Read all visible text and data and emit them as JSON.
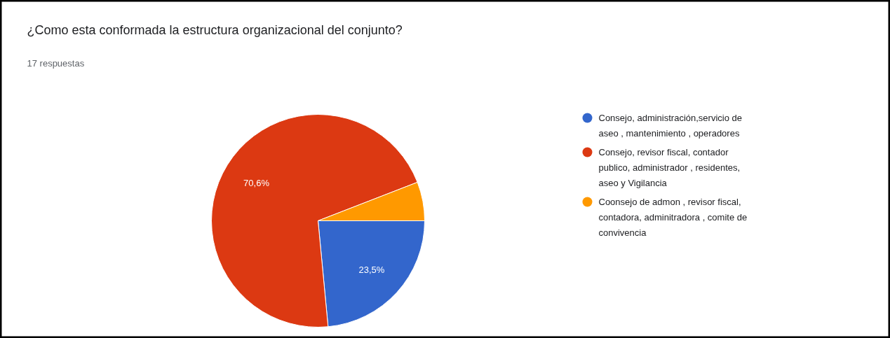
{
  "chart_data": {
    "type": "pie",
    "title": "¿Como esta conformada la estructura organizacional del conjunto?",
    "subtitle": "17 respuestas",
    "categories": [
      "Consejo, administración,servicio de aseo , mantenimiento , operadores",
      "Consejo, revisor fiscal, contador publico, administrador , residentes, aseo y Vigilancia",
      "Coonsejo de admon , revisor fiscal, contadora, adminitradora , comite de convivencia"
    ],
    "values": [
      23.5,
      70.6,
      5.9
    ],
    "colors": [
      "#3366cc",
      "#dc3912",
      "#ff9900"
    ],
    "value_labels": [
      "23,5%",
      "70,6%",
      null
    ],
    "legend": "right"
  }
}
